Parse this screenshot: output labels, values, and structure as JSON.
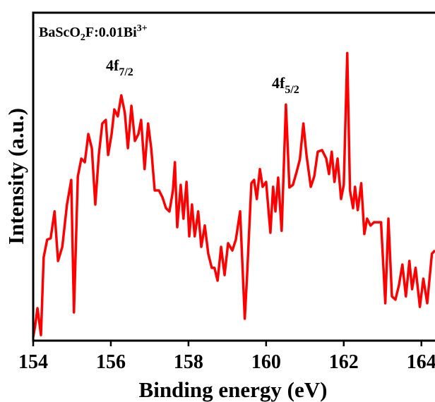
{
  "chart_data": {
    "type": "line",
    "title": [
      "BaScO",
      "2",
      "F:0.01Bi",
      "3+"
    ],
    "annotations": [
      [
        "4f",
        "7/2"
      ],
      [
        "4f",
        "5/2"
      ]
    ],
    "x_label": "Binding energy (eV)",
    "y_label": "Intensity (a.u.)",
    "color": "#ff0000",
    "xlim": [
      154,
      164.35
    ],
    "xticks": [
      154,
      156,
      158,
      160,
      162,
      164
    ],
    "ylim": [
      0,
      100
    ],
    "x": [
      154.0,
      154.05,
      154.11,
      154.2,
      154.27,
      154.36,
      154.45,
      154.55,
      154.64,
      154.75,
      154.87,
      154.98,
      155.05,
      155.15,
      155.24,
      155.33,
      155.42,
      155.51,
      155.6,
      155.69,
      155.78,
      155.87,
      155.93,
      156.02,
      156.09,
      156.18,
      156.27,
      156.36,
      156.44,
      156.53,
      156.62,
      156.71,
      156.78,
      156.87,
      156.96,
      157.04,
      157.13,
      157.24,
      157.33,
      157.42,
      157.51,
      157.6,
      157.65,
      157.71,
      157.8,
      157.87,
      157.95,
      158.02,
      158.09,
      158.16,
      158.25,
      158.33,
      158.42,
      158.51,
      158.6,
      158.67,
      158.75,
      158.84,
      158.93,
      159.02,
      159.13,
      159.22,
      159.33,
      159.45,
      159.51,
      159.62,
      159.69,
      159.76,
      159.84,
      159.91,
      160.0,
      160.11,
      160.18,
      160.24,
      160.31,
      160.4,
      160.51,
      160.6,
      160.69,
      160.78,
      160.87,
      160.96,
      161.04,
      161.15,
      161.24,
      161.33,
      161.44,
      161.55,
      161.62,
      161.69,
      161.76,
      161.84,
      161.93,
      162.0,
      162.09,
      162.16,
      162.24,
      162.29,
      162.36,
      162.45,
      162.53,
      162.6,
      162.69,
      162.78,
      162.87,
      162.96,
      163.07,
      163.15,
      163.24,
      163.33,
      163.42,
      163.51,
      163.6,
      163.69,
      163.76,
      163.85,
      163.96,
      164.05,
      164.15,
      164.27,
      164.35
    ],
    "values": [
      1.1,
      4.5,
      9.9,
      1.7,
      25.4,
      30.8,
      31.2,
      39.4,
      24.3,
      28.6,
      41.5,
      49.0,
      8.6,
      50.1,
      55.5,
      54.4,
      63.0,
      58.7,
      41.5,
      56.6,
      66.2,
      67.3,
      56.6,
      63.0,
      70.5,
      68.4,
      74.8,
      69.5,
      58.7,
      71.6,
      60.9,
      63.0,
      67.3,
      52.3,
      66.2,
      58.7,
      45.8,
      45.8,
      43.7,
      40.4,
      39.4,
      45.8,
      54.4,
      34.6,
      47.5,
      37.2,
      48.4,
      31.8,
      41.5,
      31.8,
      39.4,
      28.6,
      35.1,
      26.5,
      22.2,
      22.2,
      18.3,
      28.6,
      20.0,
      29.7,
      27.5,
      30.8,
      39.4,
      6.7,
      20.0,
      48.0,
      49.0,
      43.2,
      52.3,
      46.9,
      48.4,
      32.9,
      46.9,
      39.4,
      49.7,
      33.5,
      72.0,
      46.7,
      47.5,
      51.2,
      55.3,
      66.2,
      56.6,
      46.9,
      50.1,
      57.6,
      58.1,
      55.5,
      50.8,
      57.6,
      48.4,
      55.5,
      43.2,
      47.5,
      87.7,
      45.8,
      40.4,
      46.9,
      39.8,
      48.0,
      32.5,
      37.2,
      35.1,
      36.1,
      36.1,
      36.1,
      11.4,
      37.2,
      13.5,
      12.5,
      16.8,
      23.2,
      13.5,
      24.3,
      15.7,
      22.2,
      10.3,
      18.9,
      11.4,
      26.5,
      27.5
    ]
  }
}
